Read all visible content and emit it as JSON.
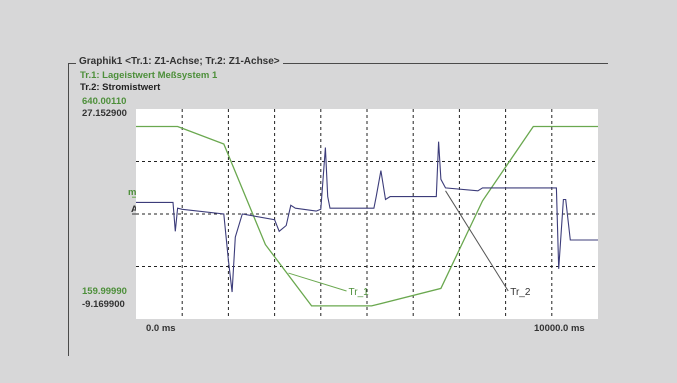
{
  "graph": {
    "title": "Graphik1 <Tr.1: Z1-Achse; Tr.2: Z1-Achse>",
    "legend": {
      "trace1": "Tr.1: Lageistwert Meßsystem 1",
      "trace2": "Tr.2: Stromistwert"
    },
    "y_axis": {
      "trace1_max": "640.00110",
      "trace2_max": "27.152900",
      "trace1_unit": "mm",
      "trace2_unit": "A",
      "trace1_min": "159.99990",
      "trace2_min": "-9.169900"
    },
    "x_axis": {
      "start": "0.0 ms",
      "end": "10000.0 ms"
    },
    "trace_labels": {
      "tr1": "Tr_1",
      "tr2": "Tr_2"
    },
    "colors": {
      "background": "#d7d7d8",
      "plot_background": "#ffffff",
      "trace1": "#6aa84f",
      "trace2": "#3c3c7a",
      "grid": "#222222"
    }
  },
  "chart_data": {
    "type": "line",
    "title": "Graphik1 <Tr.1: Z1-Achse; Tr.2: Z1-Achse>",
    "xlabel": "",
    "x_range_ms": [
      0,
      10000
    ],
    "grid": true,
    "series": [
      {
        "name": "Tr.1: Lageistwert Meßsystem 1",
        "ylim": [
          159.9999,
          640.0011
        ],
        "x": [
          0,
          900,
          1900,
          2800,
          3800,
          5100,
          6600,
          7500,
          8600,
          9200,
          10000
        ],
        "y": [
          600,
          600,
          560,
          330,
          190,
          190,
          230,
          430,
          600,
          600,
          600
        ]
      },
      {
        "name": "Tr.2: Stromistwert",
        "ylim": [
          -9.1699,
          27.1529
        ],
        "x": [
          0,
          800,
          850,
          900,
          1000,
          1900,
          2000,
          2080,
          2150,
          2300,
          3000,
          3100,
          3250,
          3350,
          3450,
          3900,
          4000,
          4100,
          4150,
          4200,
          4300,
          5150,
          5200,
          5300,
          5400,
          5500,
          6400,
          6500,
          6550,
          6600,
          6700,
          7400,
          7500,
          8700,
          9100,
          9150,
          9250,
          9300,
          9400,
          9500,
          10000
        ],
        "y": [
          11.0,
          11.0,
          6.0,
          10.0,
          9.8,
          9.0,
          1.0,
          -4.5,
          5.0,
          9.0,
          8.0,
          6.0,
          7.0,
          10.5,
          10.0,
          9.5,
          9.8,
          20.5,
          12.0,
          10.0,
          10.0,
          10.0,
          12.0,
          16.5,
          11.5,
          12.0,
          12.0,
          12.0,
          21.5,
          15.0,
          13.5,
          13.0,
          13.5,
          13.5,
          13.5,
          -0.5,
          11.5,
          11.5,
          4.5,
          4.5,
          4.5
        ]
      }
    ]
  }
}
